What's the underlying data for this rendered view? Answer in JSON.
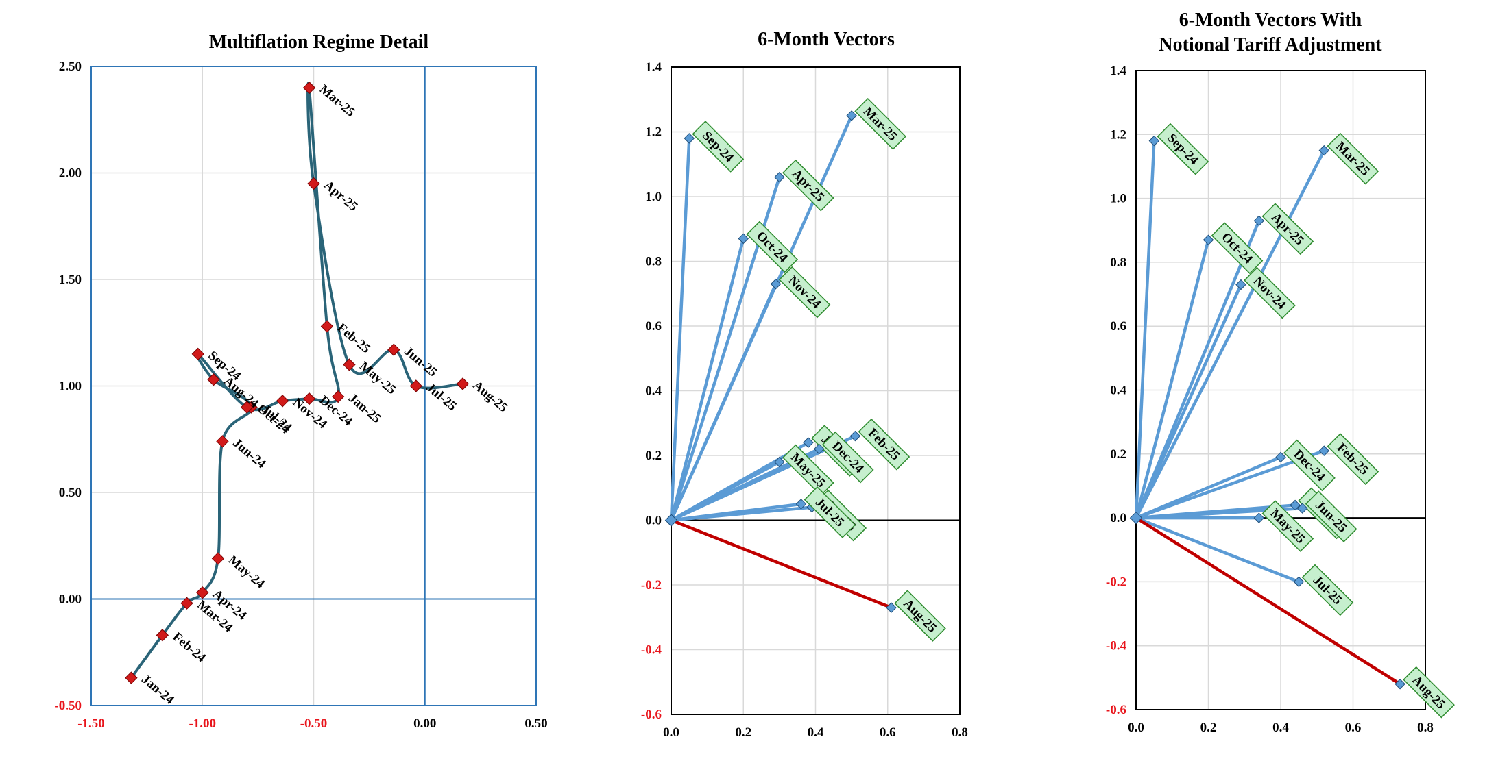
{
  "chart_data": [
    {
      "type": "line",
      "title": "Multiflation  Regime Detail",
      "xlabel": "",
      "ylabel": "",
      "xlim": [
        -1.5,
        0.5
      ],
      "ylim": [
        -0.5,
        2.5
      ],
      "xticks": [
        "-1.50",
        "-1.00",
        "-0.50",
        "0.00",
        "0.50"
      ],
      "yticks": [
        "2.50",
        "2.00",
        "1.50",
        "1.00",
        "0.50",
        "0.00",
        "-0.50"
      ],
      "negative_tick_color": "#e8141b",
      "series": [
        {
          "points": [
            {
              "label": "Jan-24",
              "x": -1.32,
              "y": -0.37
            },
            {
              "label": "Feb-24",
              "x": -1.18,
              "y": -0.17
            },
            {
              "label": "Mar-24",
              "x": -1.07,
              "y": -0.02
            },
            {
              "label": "Apr-24",
              "x": -1.0,
              "y": 0.03
            },
            {
              "label": "May-24",
              "x": -0.93,
              "y": 0.19
            },
            {
              "label": "Jun-24",
              "x": -0.91,
              "y": 0.74
            },
            {
              "label": "Jul-24",
              "x": -0.78,
              "y": 0.9
            },
            {
              "label": "Aug-24",
              "x": -0.95,
              "y": 1.03
            },
            {
              "label": "Sep-24",
              "x": -1.02,
              "y": 1.15
            },
            {
              "label": "Oct-24",
              "x": -0.8,
              "y": 0.9
            },
            {
              "label": "Nov-24",
              "x": -0.64,
              "y": 0.93
            },
            {
              "label": "Dec-24",
              "x": -0.52,
              "y": 0.94
            },
            {
              "label": "Jan-25",
              "x": -0.39,
              "y": 0.95
            },
            {
              "label": "Feb-25",
              "x": -0.44,
              "y": 1.28
            },
            {
              "label": "Mar-25",
              "x": -0.52,
              "y": 2.4
            },
            {
              "label": "Apr-25",
              "x": -0.5,
              "y": 1.95
            },
            {
              "label": "May-25",
              "x": -0.34,
              "y": 1.1
            },
            {
              "label": "Jun-25",
              "x": -0.14,
              "y": 1.17
            },
            {
              "label": "Jul-25",
              "x": -0.04,
              "y": 1.0
            },
            {
              "label": "Aug-25",
              "x": 0.17,
              "y": 1.01
            }
          ]
        }
      ],
      "colors": {
        "line": "#2a6478",
        "marker": "#d11a1a",
        "frame": "#2e75b6"
      }
    },
    {
      "type": "line",
      "title": "6-Month Vectors",
      "xlabel": "",
      "ylabel": "",
      "xlim": [
        0.0,
        0.8
      ],
      "ylim": [
        -0.6,
        1.4
      ],
      "xticks": [
        "0.0",
        "0.2",
        "0.4",
        "0.6",
        "0.8"
      ],
      "yticks": [
        "1.4",
        "1.2",
        "1.0",
        "0.8",
        "0.6",
        "0.4",
        "0.2",
        "0.0",
        "-0.2",
        "-0.4",
        "-0.6"
      ],
      "negative_tick_color": "#e8141b",
      "vectors": [
        {
          "label": "Sep-24",
          "x": 0.05,
          "y": 1.18,
          "color": "#5b9bd5"
        },
        {
          "label": "Mar-25",
          "x": 0.5,
          "y": 1.25,
          "color": "#5b9bd5"
        },
        {
          "label": "Apr-25",
          "x": 0.3,
          "y": 1.06,
          "color": "#5b9bd5"
        },
        {
          "label": "Oct-24",
          "x": 0.2,
          "y": 0.87,
          "color": "#5b9bd5"
        },
        {
          "label": "Nov-24",
          "x": 0.29,
          "y": 0.73,
          "color": "#5b9bd5"
        },
        {
          "label": "Feb-25",
          "x": 0.51,
          "y": 0.26,
          "color": "#5b9bd5"
        },
        {
          "label": "Jun-25",
          "x": 0.38,
          "y": 0.24,
          "color": "#5b9bd5"
        },
        {
          "label": "Dec-24",
          "x": 0.41,
          "y": 0.22,
          "color": "#5b9bd5"
        },
        {
          "label": "May-25",
          "x": 0.3,
          "y": 0.18,
          "color": "#5b9bd5"
        },
        {
          "label": "Jan-25",
          "x": 0.39,
          "y": 0.04,
          "color": "#5b9bd5"
        },
        {
          "label": "Jul-25",
          "x": 0.36,
          "y": 0.05,
          "color": "#5b9bd5"
        },
        {
          "label": "Aug-25",
          "x": 0.61,
          "y": -0.27,
          "color": "#c00000"
        }
      ],
      "colors": {
        "vector": "#5b9bd5",
        "negative_vector": "#c00000",
        "label_fill": "#c6efce",
        "label_border": "#2e8b2e"
      }
    },
    {
      "type": "line",
      "title": "6-Month Vectors With Notional Tariff Adjustment",
      "title_lines": [
        "6-Month Vectors With",
        "Notional Tariff Adjustment"
      ],
      "xlabel": "",
      "ylabel": "",
      "xlim": [
        0.0,
        0.8
      ],
      "ylim": [
        -0.6,
        1.4
      ],
      "xticks": [
        "0.0",
        "0.2",
        "0.4",
        "0.6",
        "0.8"
      ],
      "yticks": [
        "1.4",
        "1.2",
        "1.0",
        "0.8",
        "0.6",
        "0.4",
        "0.2",
        "0.0",
        "-0.2",
        "-0.4",
        "-0.6"
      ],
      "negative_tick_color": "#e8141b",
      "vectors": [
        {
          "label": "Sep-24",
          "x": 0.05,
          "y": 1.18,
          "color": "#5b9bd5"
        },
        {
          "label": "Mar-25",
          "x": 0.52,
          "y": 1.15,
          "color": "#5b9bd5"
        },
        {
          "label": "Apr-25",
          "x": 0.34,
          "y": 0.93,
          "color": "#5b9bd5"
        },
        {
          "label": "Oct-24",
          "x": 0.2,
          "y": 0.87,
          "color": "#5b9bd5"
        },
        {
          "label": "Nov-24",
          "x": 0.29,
          "y": 0.73,
          "color": "#5b9bd5"
        },
        {
          "label": "Feb-25",
          "x": 0.52,
          "y": 0.21,
          "color": "#5b9bd5"
        },
        {
          "label": "Dec-24",
          "x": 0.4,
          "y": 0.19,
          "color": "#5b9bd5"
        },
        {
          "label": "Jan-25",
          "x": 0.44,
          "y": 0.04,
          "color": "#5b9bd5"
        },
        {
          "label": "Jun-25",
          "x": 0.46,
          "y": 0.03,
          "color": "#5b9bd5"
        },
        {
          "label": "May-25",
          "x": 0.34,
          "y": 0.0,
          "color": "#5b9bd5"
        },
        {
          "label": "Jul-25",
          "x": 0.45,
          "y": -0.2,
          "color": "#5b9bd5"
        },
        {
          "label": "Aug-25",
          "x": 0.73,
          "y": -0.52,
          "color": "#c00000"
        }
      ],
      "colors": {
        "vector": "#5b9bd5",
        "negative_vector": "#c00000",
        "label_fill": "#c6efce",
        "label_border": "#2e8b2e"
      }
    }
  ]
}
